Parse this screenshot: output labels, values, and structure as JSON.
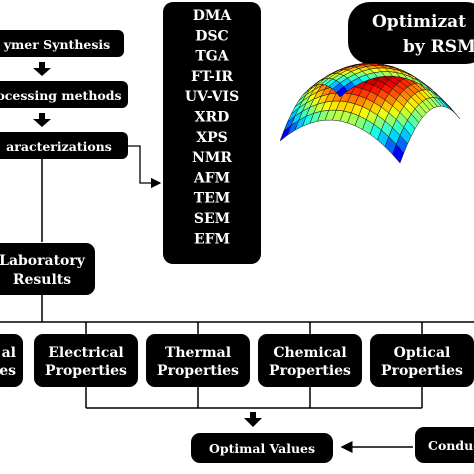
{
  "flow": {
    "synthesis": "ymer Synthesis",
    "processing": "ocessing methods",
    "characterizations": "aracterizations",
    "lab_line1": "Laboratory",
    "lab_line2": "Results"
  },
  "techniques": [
    "DMA",
    "DSC",
    "TGA",
    "FT-IR",
    "UV-VIS",
    "XRD",
    "XPS",
    "NMR",
    "AFM",
    "TEM",
    "SEM",
    "EFM"
  ],
  "optimization": {
    "line1": "Optimizat",
    "line2": "by RSM"
  },
  "properties": {
    "partial_top": "al",
    "partial_bottom": "es",
    "electrical": [
      "Electrical",
      "Properties"
    ],
    "thermal": [
      "Thermal",
      "Properties"
    ],
    "chemical": [
      "Chemical",
      "Properties"
    ],
    "optical": [
      "Optical",
      "Properties"
    ]
  },
  "optimal": "Optimal Values",
  "conduct": "Conduct",
  "colors": {
    "box": "#000000",
    "text": "#ffffff",
    "line": "#000000"
  }
}
